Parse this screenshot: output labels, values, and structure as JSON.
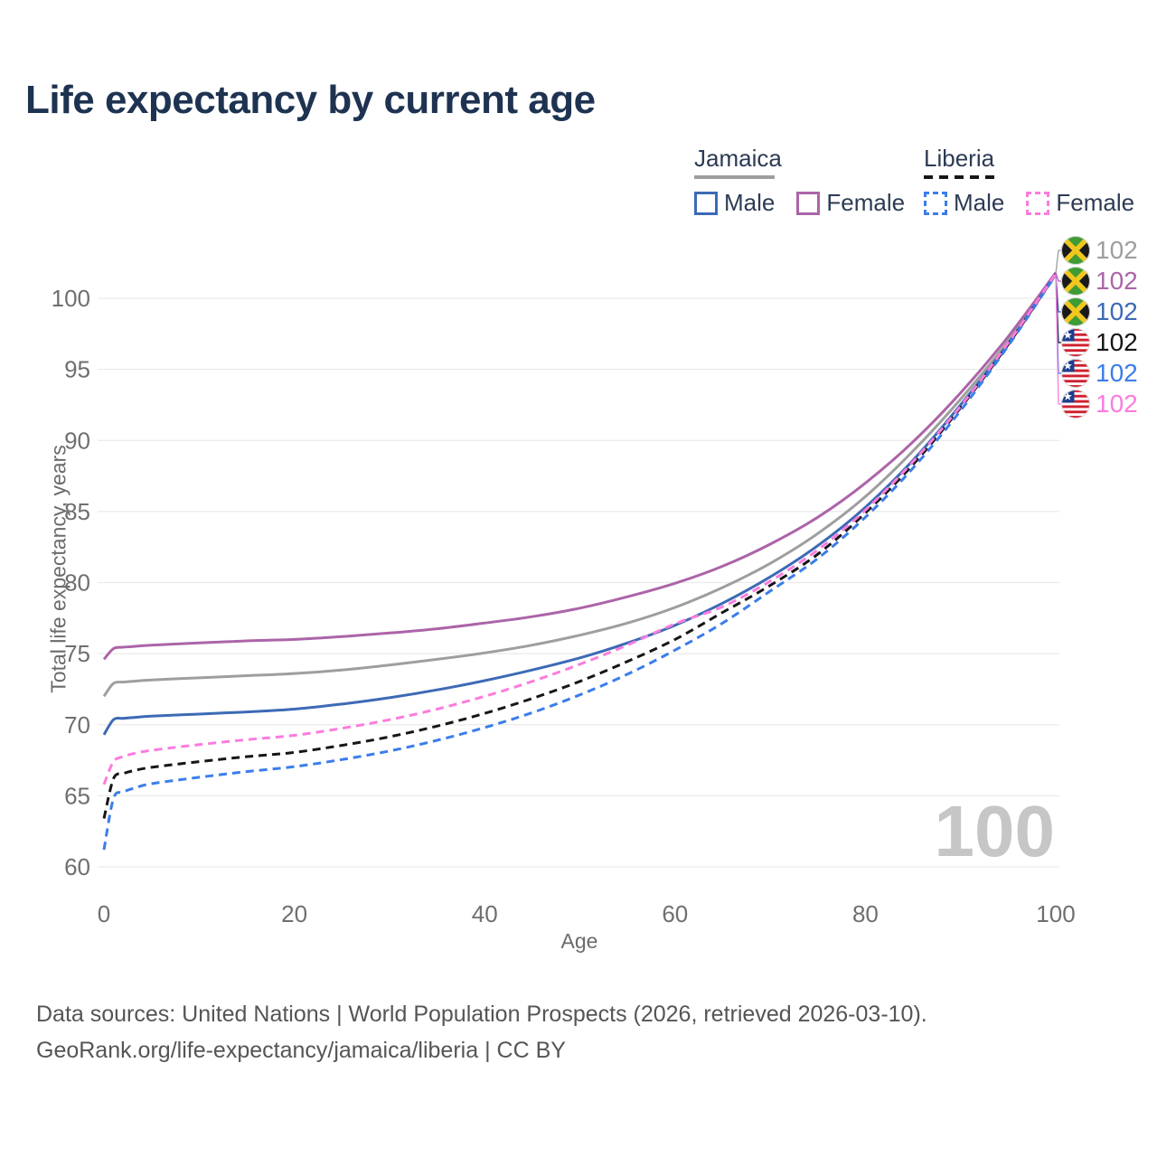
{
  "title": "Life expectancy by current age",
  "colors": {
    "title_text": "#1E3351",
    "legend_text": "#2C3B53",
    "tick_text": "#6F6F6F",
    "axis_title_text": "#6B6B6B",
    "footer_text": "#555555",
    "watermark_text": "#C6C6C6",
    "gridline": "#EAEAEA",
    "jamaica_total": "#9E9E9E",
    "jamaica_female": "#AC64A8",
    "jamaica_male": "#3D6AB5",
    "liberia_total": "#161616",
    "liberia_male": "#3B7DEB",
    "liberia_female": "#FB7CDE"
  },
  "legend": {
    "groups": [
      {
        "country": "Jamaica",
        "line_style": "solid",
        "underline_color": "#9E9E9E",
        "items": [
          {
            "label": "Male",
            "color": "#3D6AB5",
            "dash": "solid"
          },
          {
            "label": "Female",
            "color": "#AC64A8",
            "dash": "solid"
          }
        ]
      },
      {
        "country": "Liberia",
        "line_style": "dashed",
        "underline_color": "#161616",
        "items": [
          {
            "label": "Male",
            "color": "#3B7DEB",
            "dash": "dashed"
          },
          {
            "label": "Female",
            "color": "#FB7CDE",
            "dash": "dashed"
          }
        ]
      }
    ]
  },
  "watermark": "100",
  "end_labels": [
    {
      "flag": "jamaica-flag-icon",
      "series": "Jamaica total",
      "value": "102",
      "color": "#9E9E9E"
    },
    {
      "flag": "jamaica-flag-icon",
      "series": "Jamaica female",
      "value": "102",
      "color": "#AC64A8"
    },
    {
      "flag": "jamaica-flag-icon",
      "series": "Jamaica male",
      "value": "102",
      "color": "#3D6AB5"
    },
    {
      "flag": "liberia-flag-icon",
      "series": "Liberia total",
      "value": "102",
      "color": "#161616"
    },
    {
      "flag": "liberia-flag-icon",
      "series": "Liberia male",
      "value": "102",
      "color": "#3B7DEB"
    },
    {
      "flag": "liberia-flag-icon",
      "series": "Liberia female",
      "value": "102",
      "color": "#FB7CDE"
    }
  ],
  "footer": {
    "line1": "Data sources: United Nations | World Population Prospects (2026, retrieved 2026-03-10).",
    "line2": "GeoRank.org/life-expectancy/jamaica/liberia | CC BY"
  },
  "chart_data": {
    "type": "line",
    "title": "Life expectancy by current age",
    "xlabel": "Age",
    "ylabel": "Total life expectancy, years",
    "xlim": [
      0,
      100
    ],
    "ylim": [
      60,
      102
    ],
    "xticks": [
      0,
      20,
      40,
      60,
      80,
      100
    ],
    "yticks": [
      60,
      65,
      70,
      75,
      80,
      85,
      90,
      95,
      100
    ],
    "grid": "horizontal-only",
    "legend_position": "top-right",
    "age_counter": "100",
    "series": [
      {
        "name": "Jamaica — Total",
        "country": "Jamaica",
        "group": "total",
        "color": "#9E9E9E",
        "dash": "solid",
        "end_label": "102",
        "points": [
          [
            0,
            72.0
          ],
          [
            1,
            72.9
          ],
          [
            2,
            73.0
          ],
          [
            3,
            73.05
          ],
          [
            5,
            73.15
          ],
          [
            10,
            73.3
          ],
          [
            15,
            73.45
          ],
          [
            20,
            73.6
          ],
          [
            25,
            73.85
          ],
          [
            30,
            74.2
          ],
          [
            35,
            74.6
          ],
          [
            40,
            75.05
          ],
          [
            45,
            75.6
          ],
          [
            50,
            76.3
          ],
          [
            55,
            77.15
          ],
          [
            60,
            78.25
          ],
          [
            65,
            79.65
          ],
          [
            70,
            81.35
          ],
          [
            75,
            83.45
          ],
          [
            80,
            86.05
          ],
          [
            85,
            89.25
          ],
          [
            90,
            92.9
          ],
          [
            95,
            97.0
          ],
          [
            100,
            101.75
          ]
        ]
      },
      {
        "name": "Jamaica — Female",
        "country": "Jamaica",
        "group": "female",
        "color": "#AC64A8",
        "dash": "solid",
        "end_label": "102",
        "points": [
          [
            0,
            74.6
          ],
          [
            1,
            75.35
          ],
          [
            2,
            75.45
          ],
          [
            3,
            75.5
          ],
          [
            5,
            75.6
          ],
          [
            10,
            75.75
          ],
          [
            15,
            75.9
          ],
          [
            20,
            76.0
          ],
          [
            25,
            76.2
          ],
          [
            30,
            76.45
          ],
          [
            35,
            76.75
          ],
          [
            40,
            77.15
          ],
          [
            45,
            77.6
          ],
          [
            50,
            78.2
          ],
          [
            55,
            79.0
          ],
          [
            60,
            79.95
          ],
          [
            65,
            81.15
          ],
          [
            70,
            82.7
          ],
          [
            75,
            84.6
          ],
          [
            80,
            87.0
          ],
          [
            85,
            89.9
          ],
          [
            90,
            93.35
          ],
          [
            95,
            97.3
          ],
          [
            100,
            101.8
          ]
        ]
      },
      {
        "name": "Jamaica — Male",
        "country": "Jamaica",
        "group": "male",
        "color": "#3D6AB5",
        "dash": "solid",
        "end_label": "102",
        "points": [
          [
            0,
            69.3
          ],
          [
            1,
            70.35
          ],
          [
            2,
            70.45
          ],
          [
            3,
            70.5
          ],
          [
            5,
            70.6
          ],
          [
            10,
            70.75
          ],
          [
            15,
            70.9
          ],
          [
            20,
            71.1
          ],
          [
            25,
            71.45
          ],
          [
            30,
            71.9
          ],
          [
            35,
            72.45
          ],
          [
            40,
            73.1
          ],
          [
            45,
            73.85
          ],
          [
            50,
            74.7
          ],
          [
            55,
            75.75
          ],
          [
            60,
            77.0
          ],
          [
            65,
            78.55
          ],
          [
            70,
            80.4
          ],
          [
            75,
            82.6
          ],
          [
            80,
            85.3
          ],
          [
            85,
            88.6
          ],
          [
            90,
            92.5
          ],
          [
            95,
            96.8
          ],
          [
            100,
            101.7
          ]
        ]
      },
      {
        "name": "Liberia — Total",
        "country": "Liberia",
        "group": "total",
        "color": "#161616",
        "dash": "dashed",
        "end_label": "102",
        "points": [
          [
            0,
            63.4
          ],
          [
            1,
            66.2
          ],
          [
            2,
            66.55
          ],
          [
            3,
            66.75
          ],
          [
            5,
            67.0
          ],
          [
            10,
            67.4
          ],
          [
            15,
            67.75
          ],
          [
            20,
            68.05
          ],
          [
            25,
            68.55
          ],
          [
            30,
            69.15
          ],
          [
            35,
            69.9
          ],
          [
            40,
            70.8
          ],
          [
            45,
            71.85
          ],
          [
            50,
            73.05
          ],
          [
            55,
            74.45
          ],
          [
            60,
            76.0
          ],
          [
            65,
            77.9
          ],
          [
            70,
            79.8
          ],
          [
            75,
            82.0
          ],
          [
            80,
            84.9
          ],
          [
            85,
            88.3
          ],
          [
            90,
            92.3
          ],
          [
            95,
            96.75
          ],
          [
            100,
            101.7
          ]
        ]
      },
      {
        "name": "Liberia — Male",
        "country": "Liberia",
        "group": "male",
        "color": "#3B7DEB",
        "dash": "dashed",
        "end_label": "102",
        "points": [
          [
            0,
            61.2
          ],
          [
            1,
            64.8
          ],
          [
            2,
            65.25
          ],
          [
            3,
            65.5
          ],
          [
            5,
            65.85
          ],
          [
            10,
            66.3
          ],
          [
            15,
            66.7
          ],
          [
            20,
            67.05
          ],
          [
            25,
            67.55
          ],
          [
            30,
            68.15
          ],
          [
            35,
            68.9
          ],
          [
            40,
            69.8
          ],
          [
            45,
            70.85
          ],
          [
            50,
            72.1
          ],
          [
            55,
            73.55
          ],
          [
            60,
            75.25
          ],
          [
            65,
            77.15
          ],
          [
            70,
            79.4
          ],
          [
            75,
            81.7
          ],
          [
            80,
            84.6
          ],
          [
            85,
            88.05
          ],
          [
            90,
            92.1
          ],
          [
            95,
            96.65
          ],
          [
            100,
            101.65
          ]
        ]
      },
      {
        "name": "Liberia — Female",
        "country": "Liberia",
        "group": "female",
        "color": "#FB7CDE",
        "dash": "dashed",
        "end_label": "102",
        "points": [
          [
            0,
            65.8
          ],
          [
            1,
            67.4
          ],
          [
            2,
            67.75
          ],
          [
            3,
            67.95
          ],
          [
            5,
            68.2
          ],
          [
            10,
            68.6
          ],
          [
            15,
            68.95
          ],
          [
            20,
            69.25
          ],
          [
            25,
            69.75
          ],
          [
            30,
            70.35
          ],
          [
            35,
            71.1
          ],
          [
            40,
            72.0
          ],
          [
            45,
            73.05
          ],
          [
            50,
            74.25
          ],
          [
            55,
            75.6
          ],
          [
            60,
            77.1
          ],
          [
            65,
            78.3
          ],
          [
            70,
            80.1
          ],
          [
            75,
            82.3
          ],
          [
            80,
            85.1
          ],
          [
            85,
            88.5
          ],
          [
            90,
            92.4
          ],
          [
            95,
            96.85
          ],
          [
            100,
            101.72
          ]
        ]
      }
    ]
  }
}
